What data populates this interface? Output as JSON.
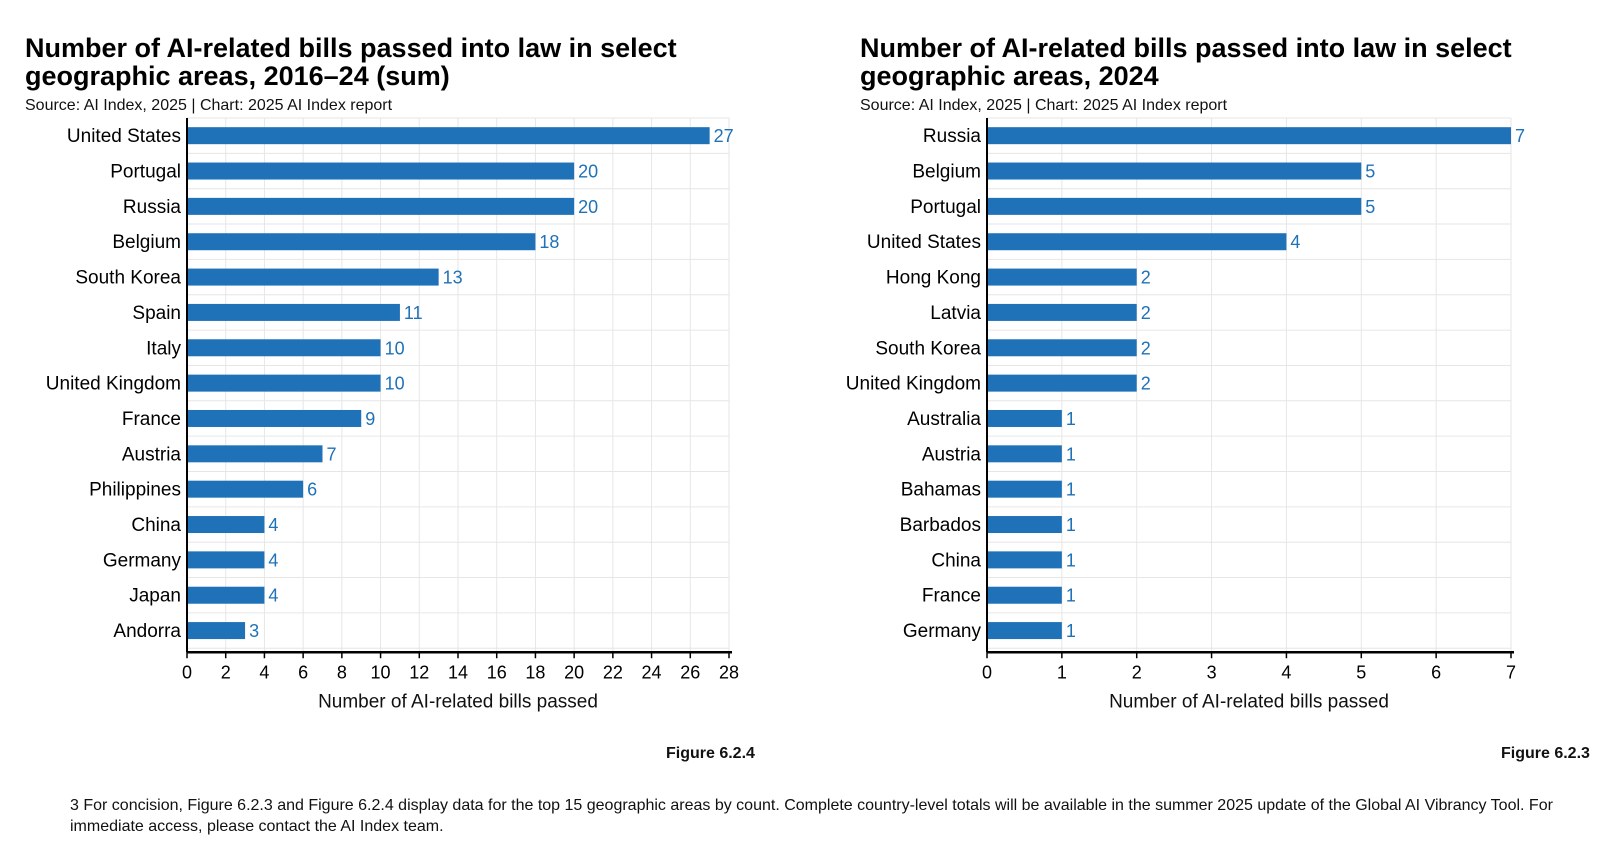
{
  "charts": [
    {
      "id": "left",
      "title": "Number of AI-related bills passed into law in select geographic areas, 2016–24 (sum)",
      "source": "Source: AI Index, 2025 | Chart: 2025 AI Index report",
      "figure": "Figure 6.2.4"
    },
    {
      "id": "right",
      "title": "Number of AI-related bills passed into law in select geographic areas, 2024",
      "source": "Source: AI Index, 2025 | Chart: 2025 AI Index report",
      "figure": "Figure 6.2.3"
    }
  ],
  "footnote": "3 For concision, Figure 6.2.3 and Figure 6.2.4 display data for the top 15 geographic areas by count. Complete country-level totals will be available in the summer 2025 update of the Global AI Vibrancy Tool. For immediate access, please contact the AI Index team.",
  "colors": {
    "bar": "#1f72b8",
    "value_label": "#1f72b8",
    "grid": "#e6e6e6",
    "axis": "#000000"
  },
  "chart_data": [
    {
      "type": "bar",
      "orientation": "horizontal",
      "title": "Number of AI-related bills passed into law in select geographic areas, 2016–24 (sum)",
      "xlabel": "Number of AI-related bills passed",
      "ylabel": "",
      "xlim": [
        0,
        28
      ],
      "xticks": [
        0,
        2,
        4,
        6,
        8,
        10,
        12,
        14,
        16,
        18,
        20,
        22,
        24,
        26,
        28
      ],
      "grid": true,
      "categories": [
        "United States",
        "Portugal",
        "Russia",
        "Belgium",
        "South Korea",
        "Spain",
        "Italy",
        "United Kingdom",
        "France",
        "Austria",
        "Philippines",
        "China",
        "Germany",
        "Japan",
        "Andorra"
      ],
      "values": [
        27,
        20,
        20,
        18,
        13,
        11,
        10,
        10,
        9,
        7,
        6,
        4,
        4,
        4,
        3
      ]
    },
    {
      "type": "bar",
      "orientation": "horizontal",
      "title": "Number of AI-related bills passed into law in select geographic areas, 2024",
      "xlabel": "Number of AI-related bills passed",
      "ylabel": "",
      "xlim": [
        0,
        7
      ],
      "xticks": [
        0,
        1,
        2,
        3,
        4,
        5,
        6,
        7
      ],
      "grid": true,
      "categories": [
        "Russia",
        "Belgium",
        "Portugal",
        "United States",
        "Hong Kong",
        "Latvia",
        "South Korea",
        "United Kingdom",
        "Australia",
        "Austria",
        "Bahamas",
        "Barbados",
        "China",
        "France",
        "Germany"
      ],
      "values": [
        7,
        5,
        5,
        4,
        2,
        2,
        2,
        2,
        1,
        1,
        1,
        1,
        1,
        1,
        1
      ]
    }
  ]
}
